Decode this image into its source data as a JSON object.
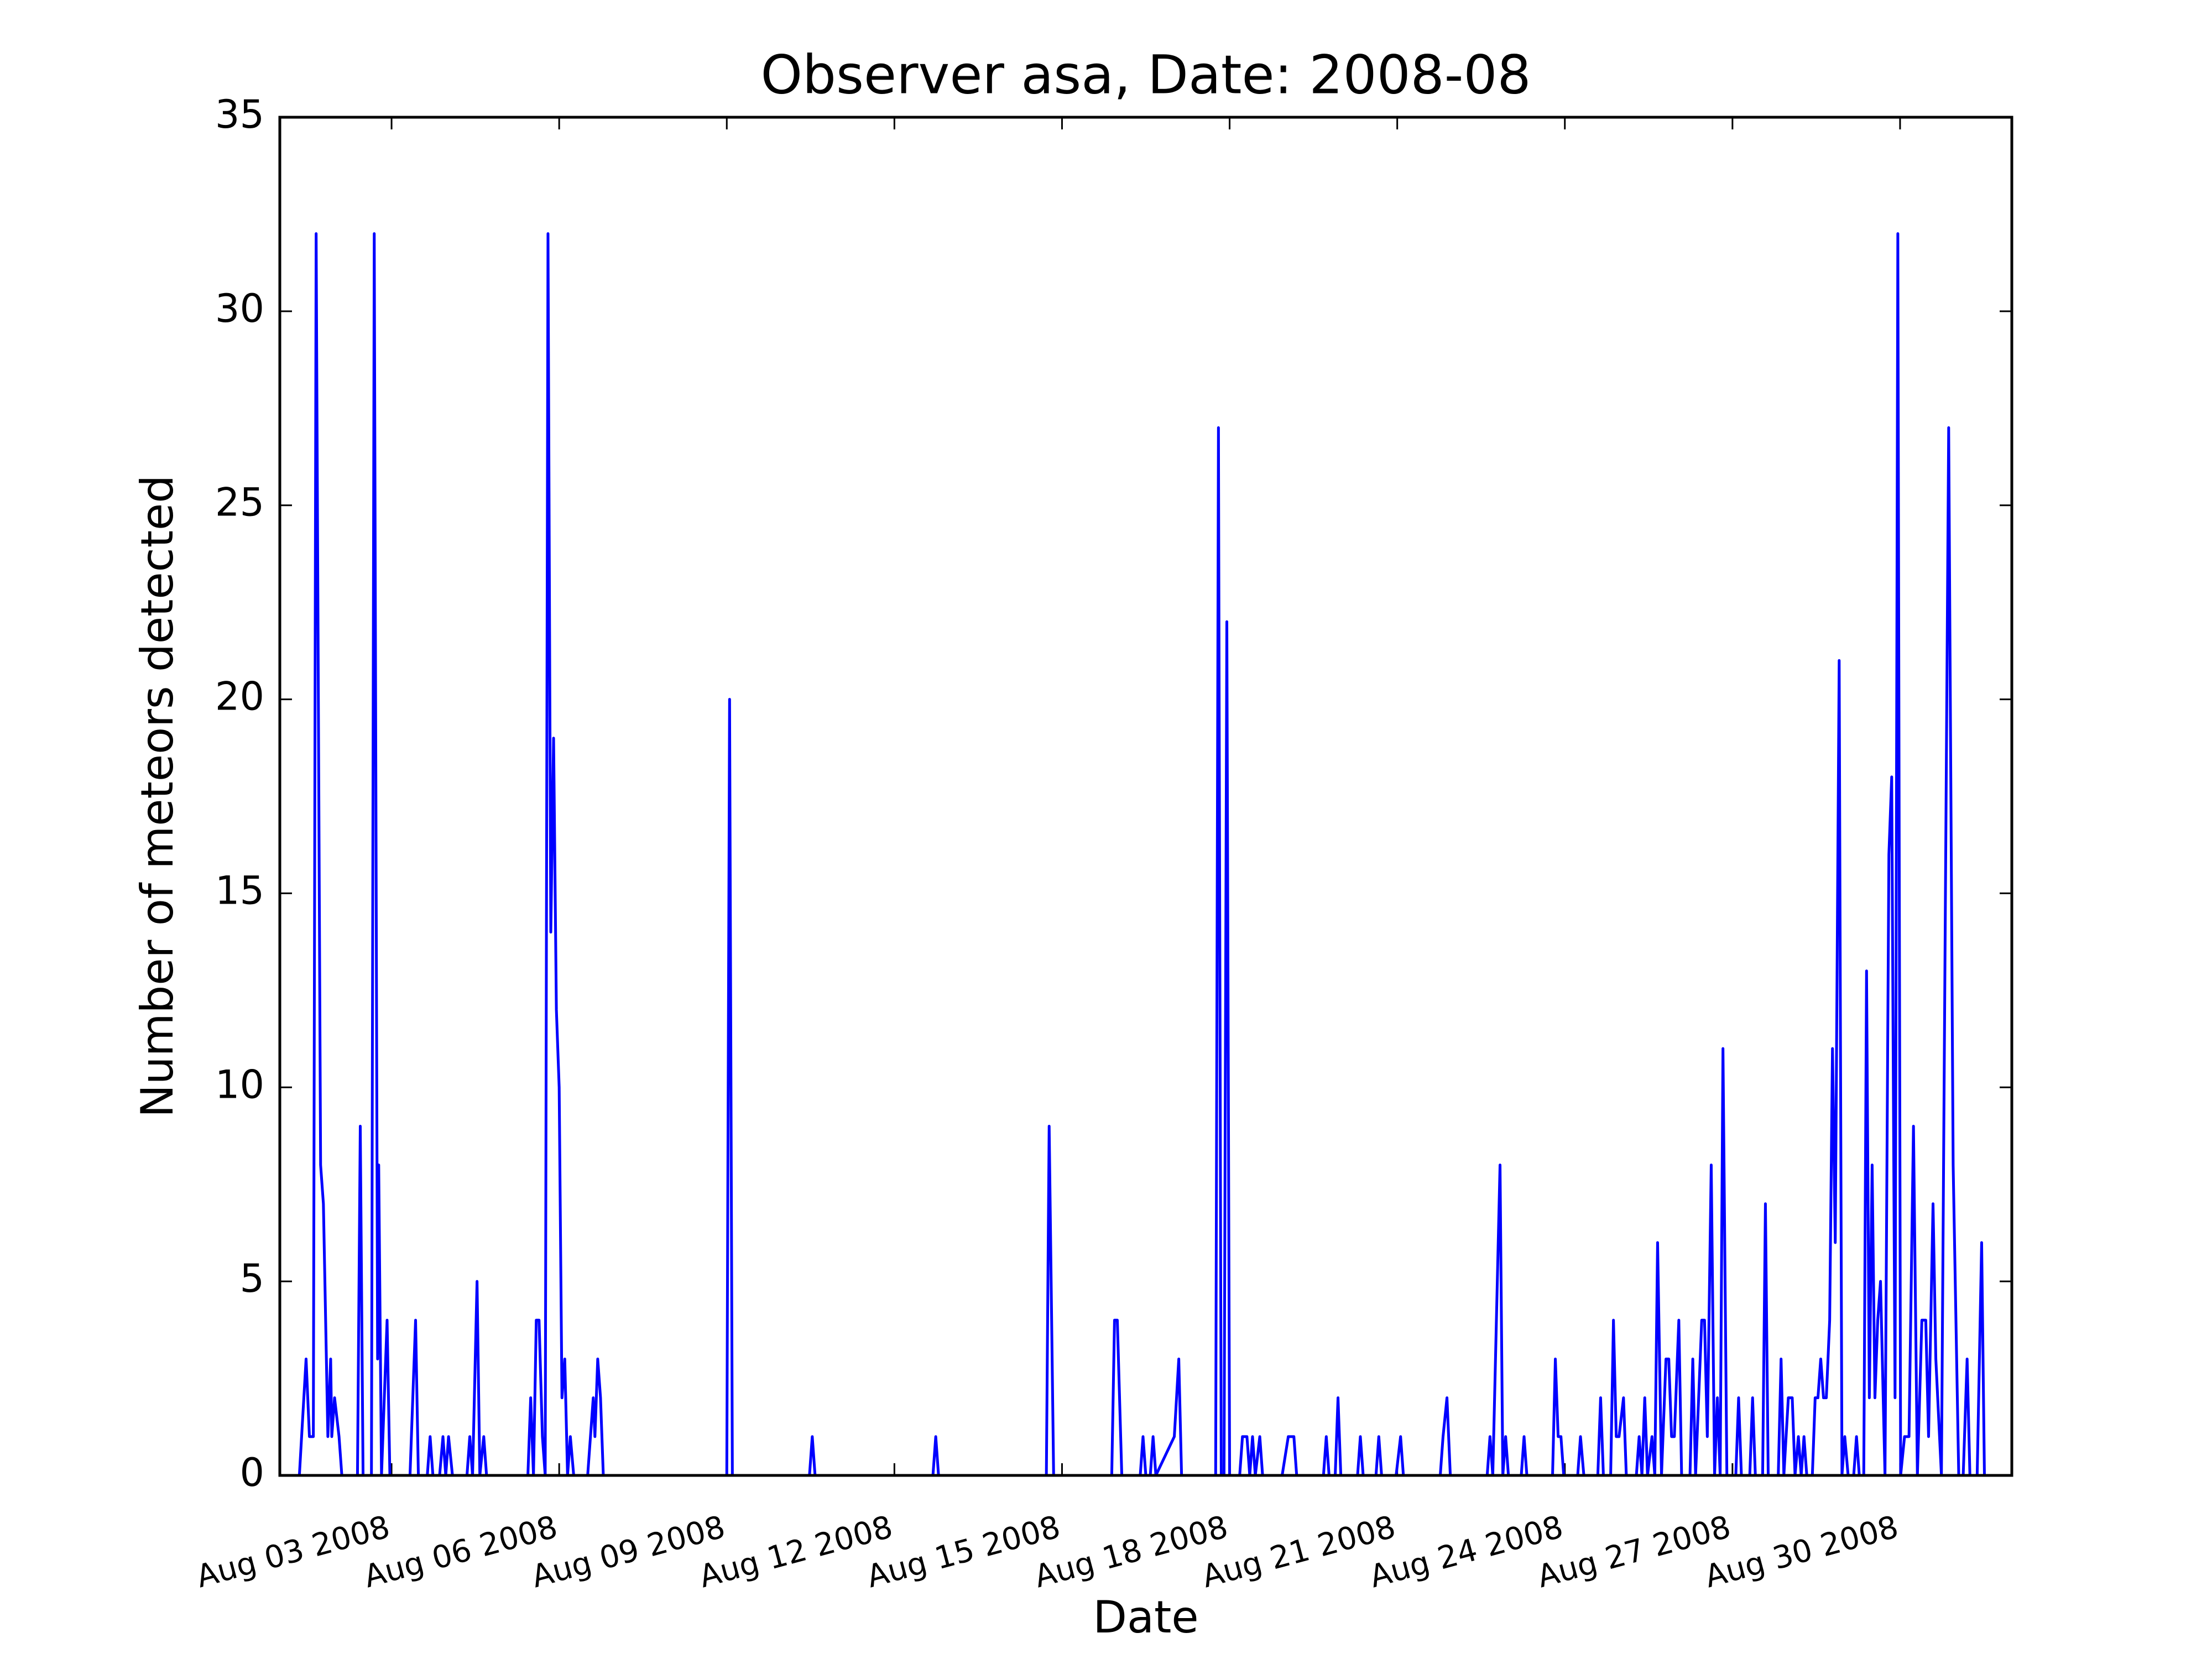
{
  "chart_data": {
    "type": "line",
    "title": "Observer asa, Date: 2008-08",
    "x_label": "Date",
    "y_label": "Number of meteors detected",
    "color": "#0000ff",
    "x": [
      1.35,
      1.47,
      1.53,
      1.6,
      1.65,
      1.73,
      1.78,
      1.86,
      1.91,
      1.93,
      1.98,
      2.06,
      2.11,
      2.39,
      2.44,
      2.49,
      2.64,
      2.69,
      2.75,
      2.77,
      2.82,
      2.92,
      2.97,
      3.33,
      3.38,
      3.43,
      3.48,
      3.64,
      3.69,
      3.74,
      3.86,
      3.92,
      3.97,
      4.02,
      4.09,
      4.35,
      4.4,
      4.45,
      4.53,
      4.58,
      4.65,
      4.7,
      5.44,
      5.49,
      5.54,
      5.59,
      5.64,
      5.7,
      5.75,
      5.8,
      5.85,
      5.9,
      5.95,
      6.0,
      6.05,
      6.1,
      6.15,
      6.2,
      6.26,
      6.51,
      6.61,
      6.64,
      6.69,
      6.74,
      6.79,
      9.0,
      9.05,
      9.1,
      10.48,
      10.53,
      10.58,
      12.69,
      12.74,
      12.79,
      14.72,
      14.77,
      14.85,
      15.89,
      15.94,
      15.99,
      16.07,
      16.4,
      16.45,
      16.5,
      16.58,
      16.63,
      16.68,
      17.01,
      17.09,
      17.14,
      17.75,
      17.8,
      17.85,
      17.9,
      17.95,
      18.0,
      18.18,
      18.23,
      18.31,
      18.36,
      18.41,
      18.46,
      18.54,
      18.59,
      18.94,
      19.05,
      19.15,
      19.2,
      19.68,
      19.73,
      19.78,
      19.89,
      19.94,
      19.99,
      20.29,
      20.34,
      20.39,
      20.62,
      20.67,
      20.72,
      20.98,
      21.06,
      21.11,
      21.77,
      21.82,
      21.89,
      21.95,
      22.61,
      22.66,
      22.71,
      22.84,
      22.89,
      22.94,
      22.99,
      23.22,
      23.27,
      23.32,
      23.78,
      23.83,
      23.88,
      23.93,
      23.98,
      24.23,
      24.28,
      24.34,
      24.59,
      24.64,
      24.69,
      24.82,
      24.87,
      24.92,
      24.97,
      25.05,
      25.1,
      25.28,
      25.33,
      25.38,
      25.43,
      25.48,
      25.56,
      25.61,
      25.66,
      25.73,
      25.81,
      25.86,
      25.91,
      25.96,
      26.04,
      26.09,
      26.24,
      26.29,
      26.34,
      26.45,
      26.5,
      26.55,
      26.62,
      26.68,
      26.73,
      26.78,
      26.83,
      26.9,
      27.06,
      27.11,
      27.16,
      27.31,
      27.36,
      27.41,
      27.54,
      27.59,
      27.64,
      27.82,
      27.87,
      27.92,
      28.0,
      28.07,
      28.12,
      28.18,
      28.23,
      28.28,
      28.33,
      28.43,
      28.48,
      28.53,
      28.58,
      28.63,
      28.68,
      28.74,
      28.79,
      28.84,
      28.91,
      28.96,
      29.01,
      29.07,
      29.17,
      29.22,
      29.27,
      29.35,
      29.4,
      29.45,
      29.5,
      29.55,
      29.6,
      29.65,
      29.73,
      29.8,
      29.85,
      29.91,
      29.96,
      30.01,
      30.08,
      30.16,
      30.24,
      30.31,
      30.39,
      30.46,
      30.51,
      30.59,
      30.64,
      30.74,
      30.87,
      30.95,
      31.05,
      31.13,
      31.2,
      31.25,
      31.38,
      31.46,
      31.51
    ],
    "values": [
      0,
      3,
      1,
      1,
      32,
      8,
      7,
      1,
      3,
      1,
      2,
      1,
      0,
      0,
      9,
      0,
      0,
      32,
      3,
      8,
      0,
      4,
      0,
      0,
      2,
      4,
      0,
      0,
      1,
      0,
      0,
      1,
      0,
      1,
      0,
      0,
      1,
      0,
      5,
      0,
      1,
      0,
      0,
      2,
      0,
      4,
      4,
      1,
      0,
      32,
      14,
      19,
      12,
      10,
      2,
      3,
      0,
      1,
      0,
      0,
      2,
      1,
      3,
      2,
      0,
      0,
      20,
      0,
      0,
      1,
      0,
      0,
      1,
      0,
      0,
      9,
      0,
      0,
      4,
      4,
      0,
      0,
      1,
      0,
      0,
      1,
      0,
      1,
      3,
      0,
      0,
      27,
      0,
      0,
      22,
      0,
      0,
      1,
      1,
      0,
      1,
      0,
      1,
      0,
      0,
      1,
      1,
      0,
      0,
      1,
      0,
      0,
      2,
      0,
      0,
      1,
      0,
      0,
      1,
      0,
      0,
      1,
      0,
      0,
      1,
      2,
      0,
      0,
      1,
      0,
      8,
      0,
      1,
      0,
      0,
      1,
      0,
      0,
      3,
      1,
      1,
      0,
      0,
      1,
      0,
      0,
      2,
      0,
      0,
      4,
      1,
      1,
      2,
      0,
      0,
      1,
      0,
      2,
      0,
      1,
      0,
      6,
      0,
      3,
      3,
      1,
      1,
      4,
      0,
      0,
      3,
      0,
      4,
      4,
      1,
      8,
      0,
      2,
      0,
      11,
      0,
      0,
      2,
      0,
      0,
      2,
      0,
      0,
      7,
      0,
      0,
      3,
      0,
      2,
      2,
      0,
      1,
      0,
      1,
      0,
      0,
      2,
      2,
      3,
      2,
      2,
      4,
      11,
      6,
      21,
      0,
      1,
      0,
      0,
      1,
      0,
      0,
      13,
      2,
      8,
      2,
      4,
      5,
      0,
      16,
      18,
      2,
      32,
      0,
      1,
      1,
      9,
      0,
      4,
      4,
      1,
      7,
      3,
      0,
      27,
      8,
      0,
      0,
      3,
      0,
      0,
      6,
      0
    ],
    "xlim": [
      1,
      32
    ],
    "xticks": [
      {
        "value": 3,
        "label": "Aug 03 2008"
      },
      {
        "value": 6,
        "label": "Aug 06 2008"
      },
      {
        "value": 9,
        "label": "Aug 09 2008"
      },
      {
        "value": 12,
        "label": "Aug 12 2008"
      },
      {
        "value": 15,
        "label": "Aug 15 2008"
      },
      {
        "value": 18,
        "label": "Aug 18 2008"
      },
      {
        "value": 21,
        "label": "Aug 21 2008"
      },
      {
        "value": 24,
        "label": "Aug 24 2008"
      },
      {
        "value": 27,
        "label": "Aug 27 2008"
      },
      {
        "value": 30,
        "label": "Aug 30 2008"
      }
    ],
    "ylim": [
      0,
      35
    ],
    "yticks": [
      0,
      5,
      10,
      15,
      20,
      25,
      30,
      35
    ],
    "grid": false
  }
}
